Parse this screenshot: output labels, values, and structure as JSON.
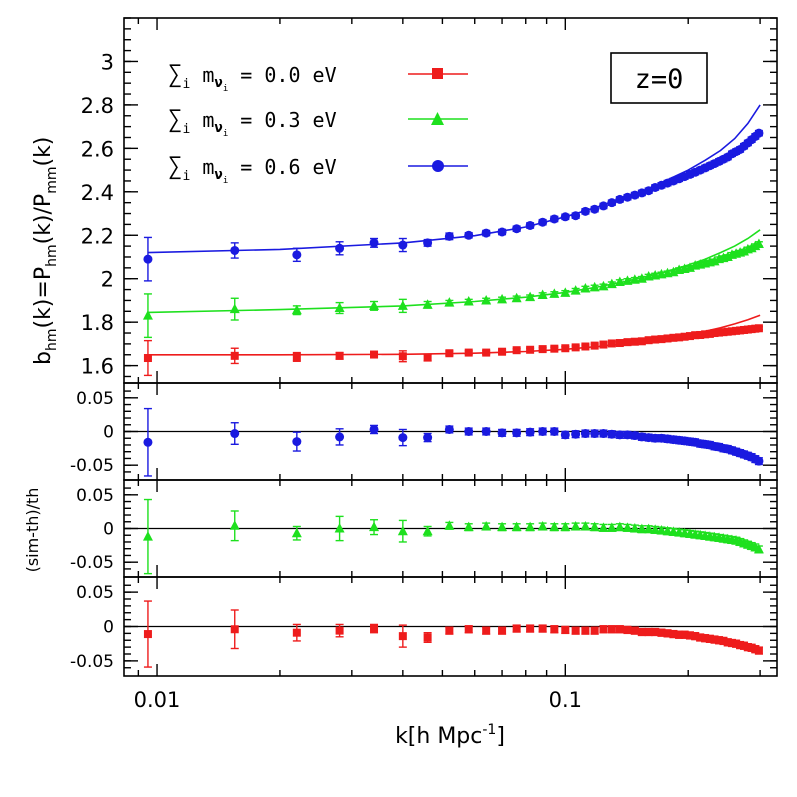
{
  "chart_data": {
    "type": "scatter",
    "x_axis": {
      "label_main": "k[h Mpc",
      "label_sup": "-1",
      "label_end": "]",
      "scale": "log",
      "range": [
        0.0083,
        0.33
      ],
      "tick_labels": [
        {
          "value": 0.01,
          "text": "0.01"
        },
        {
          "value": 0.1,
          "text": "0.1"
        }
      ]
    },
    "top_panel": {
      "ylabel": {
        "b": "b",
        "b_sub": "hm",
        "mid1": "(k)=P",
        "p1_sub": "hm",
        "mid2": "(k)/P",
        "p2_sub": "mm",
        "end": "(k)"
      },
      "ylim": [
        1.52,
        3.2
      ],
      "tick_labels": [
        {
          "value": 1.6,
          "text": "1.6"
        },
        {
          "value": 1.8,
          "text": "1.8"
        },
        {
          "value": 2.0,
          "text": "2"
        },
        {
          "value": 2.2,
          "text": "2.2"
        },
        {
          "value": 2.4,
          "text": "2.4"
        },
        {
          "value": 2.6,
          "text": "2.6"
        },
        {
          "value": 2.8,
          "text": "2.8"
        },
        {
          "value": 3.0,
          "text": "3"
        }
      ],
      "annotation": "z=0",
      "legend_placement": "top-left",
      "legend": [
        {
          "sum": "∑",
          "i_sub": "i",
          "m": " m",
          "nu": "ν",
          "nu_sub": "i",
          "value": " = 0.0 eV",
          "color": "#ee1c1c",
          "marker": "square"
        },
        {
          "sum": "∑",
          "i_sub": "i",
          "m": " m",
          "nu": "ν",
          "nu_sub": "i",
          "value": " = 0.3 eV",
          "color": "#1ee01e",
          "marker": "triangle"
        },
        {
          "sum": "∑",
          "i_sub": "i",
          "m": " m",
          "nu": "ν",
          "nu_sub": "i",
          "value": " = 0.6 eV",
          "color": "#1a1ae0",
          "marker": "circle"
        }
      ]
    },
    "residual_panels": {
      "ylabel": "(sim-th)/th",
      "ylim": [
        -0.072,
        0.072
      ],
      "tick_labels": [
        {
          "value": 0.05,
          "text": "0.05"
        },
        {
          "value": 0,
          "text": "0"
        },
        {
          "value": -0.05,
          "text": "-0.05"
        }
      ],
      "order": [
        "0.6 eV",
        "0.3 eV",
        "0.0 eV"
      ]
    },
    "series": [
      {
        "color": "#ee1c1c",
        "marker": "square",
        "k": [
          0.0095,
          0.0155,
          0.022,
          0.028,
          0.034,
          0.04,
          0.046,
          0.052,
          0.058,
          0.064,
          0.07,
          0.076,
          0.082,
          0.088,
          0.094,
          0.1,
          0.106,
          0.112,
          0.118,
          0.124,
          0.13,
          0.136,
          0.142,
          0.148,
          0.154,
          0.16,
          0.166,
          0.172,
          0.178,
          0.184,
          0.19,
          0.196,
          0.202,
          0.208,
          0.214,
          0.22,
          0.226,
          0.232,
          0.238,
          0.244,
          0.25,
          0.256,
          0.262,
          0.268,
          0.274,
          0.28,
          0.286,
          0.292,
          0.298
        ],
        "bias": [
          1.635,
          1.645,
          1.64,
          1.645,
          1.651,
          1.643,
          1.637,
          1.657,
          1.66,
          1.66,
          1.664,
          1.671,
          1.673,
          1.676,
          1.678,
          1.68,
          1.684,
          1.688,
          1.692,
          1.697,
          1.702,
          1.704,
          1.708,
          1.71,
          1.712,
          1.717,
          1.72,
          1.722,
          1.725,
          1.728,
          1.73,
          1.733,
          1.736,
          1.74,
          1.741,
          1.744,
          1.746,
          1.75,
          1.752,
          1.754,
          1.756,
          1.758,
          1.76,
          1.762,
          1.764,
          1.766,
          1.768,
          1.77,
          1.772
        ],
        "bias_err": [
          0.08,
          0.035,
          0.02,
          0.015,
          0.01,
          0.025,
          0.015,
          0.01,
          0.008,
          0.008,
          0.008,
          0.007,
          0.007,
          0.007,
          0.007,
          0.007,
          0.007,
          0.007,
          0.007,
          0.007,
          0.007,
          0.007,
          0.007,
          0.007,
          0.007,
          0.007,
          0.007,
          0.007,
          0.007,
          0.007,
          0.007,
          0.007,
          0.007,
          0.007,
          0.007,
          0.007,
          0.007,
          0.007,
          0.007,
          0.007,
          0.007,
          0.007,
          0.007,
          0.007,
          0.007,
          0.007,
          0.007,
          0.007,
          0.007
        ],
        "theory_k": [
          0.0095,
          0.02,
          0.04,
          0.06,
          0.08,
          0.1,
          0.12,
          0.14,
          0.16,
          0.18,
          0.2,
          0.22,
          0.24,
          0.26,
          0.28,
          0.3
        ],
        "theory": [
          1.65,
          1.65,
          1.652,
          1.657,
          1.665,
          1.675,
          1.688,
          1.701,
          1.714,
          1.728,
          1.742,
          1.758,
          1.774,
          1.792,
          1.811,
          1.832
        ],
        "resid": [
          -0.011,
          -0.004,
          -0.009,
          -0.006,
          -0.003,
          -0.014,
          -0.016,
          -0.006,
          -0.004,
          -0.006,
          -0.006,
          -0.003,
          -0.003,
          -0.003,
          -0.004,
          -0.005,
          -0.006,
          -0.006,
          -0.006,
          -0.004,
          -0.004,
          -0.004,
          -0.005,
          -0.006,
          -0.008,
          -0.008,
          -0.008,
          -0.009,
          -0.01,
          -0.011,
          -0.012,
          -0.012,
          -0.013,
          -0.014,
          -0.016,
          -0.017,
          -0.018,
          -0.019,
          -0.02,
          -0.021,
          -0.023,
          -0.024,
          -0.025,
          -0.027,
          -0.028,
          -0.03,
          -0.031,
          -0.033,
          -0.035
        ],
        "resid_err": [
          0.048,
          0.028,
          0.012,
          0.009,
          0.006,
          0.016,
          0.007,
          0.005,
          0.005,
          0.005,
          0.005,
          0.005,
          0.005,
          0.005,
          0.005,
          0.005,
          0.005,
          0.005,
          0.005,
          0.005,
          0.005,
          0.005,
          0.005,
          0.005,
          0.005,
          0.005,
          0.005,
          0.005,
          0.005,
          0.005,
          0.005,
          0.005,
          0.005,
          0.005,
          0.005,
          0.005,
          0.005,
          0.005,
          0.005,
          0.005,
          0.005,
          0.005,
          0.005,
          0.005,
          0.005,
          0.005,
          0.005,
          0.005,
          0.005
        ]
      },
      {
        "color": "#1ee01e",
        "marker": "triangle",
        "k": [
          0.0095,
          0.0155,
          0.022,
          0.028,
          0.034,
          0.04,
          0.046,
          0.052,
          0.058,
          0.064,
          0.07,
          0.076,
          0.082,
          0.088,
          0.094,
          0.1,
          0.106,
          0.112,
          0.118,
          0.124,
          0.13,
          0.136,
          0.142,
          0.148,
          0.154,
          0.16,
          0.166,
          0.172,
          0.178,
          0.184,
          0.19,
          0.196,
          0.202,
          0.208,
          0.214,
          0.22,
          0.226,
          0.232,
          0.238,
          0.244,
          0.25,
          0.256,
          0.262,
          0.268,
          0.274,
          0.28,
          0.286,
          0.292,
          0.298
        ],
        "bias": [
          1.83,
          1.86,
          1.855,
          1.865,
          1.875,
          1.875,
          1.88,
          1.89,
          1.895,
          1.9,
          1.905,
          1.91,
          1.915,
          1.925,
          1.93,
          1.935,
          1.945,
          1.955,
          1.96,
          1.965,
          1.975,
          1.985,
          1.99,
          1.995,
          2.0,
          2.01,
          2.015,
          2.02,
          2.025,
          2.03,
          2.04,
          2.045,
          2.05,
          2.06,
          2.065,
          2.07,
          2.075,
          2.08,
          2.09,
          2.095,
          2.1,
          2.11,
          2.115,
          2.12,
          2.125,
          2.135,
          2.14,
          2.15,
          2.16
        ],
        "bias_err": [
          0.1,
          0.05,
          0.02,
          0.025,
          0.02,
          0.03,
          0.015,
          0.01,
          0.01,
          0.01,
          0.01,
          0.01,
          0.01,
          0.01,
          0.01,
          0.01,
          0.01,
          0.01,
          0.01,
          0.01,
          0.01,
          0.01,
          0.01,
          0.01,
          0.01,
          0.01,
          0.01,
          0.01,
          0.01,
          0.01,
          0.01,
          0.01,
          0.01,
          0.01,
          0.01,
          0.01,
          0.01,
          0.01,
          0.01,
          0.01,
          0.01,
          0.01,
          0.01,
          0.01,
          0.01,
          0.01,
          0.01,
          0.01,
          0.01
        ],
        "theory_k": [
          0.0095,
          0.02,
          0.04,
          0.06,
          0.08,
          0.1,
          0.12,
          0.14,
          0.16,
          0.18,
          0.2,
          0.22,
          0.24,
          0.26,
          0.28,
          0.3
        ],
        "theory": [
          1.845,
          1.858,
          1.875,
          1.895,
          1.915,
          1.937,
          1.962,
          1.987,
          2.012,
          2.037,
          2.063,
          2.09,
          2.12,
          2.15,
          2.185,
          2.225
        ],
        "resid": [
          -0.012,
          0.004,
          -0.007,
          0.0,
          0.002,
          -0.004,
          -0.004,
          0.004,
          0.002,
          0.003,
          0.002,
          0.002,
          0.002,
          0.003,
          0.002,
          0.002,
          0.003,
          0.003,
          0.002,
          0.001,
          0.001,
          0.002,
          0.001,
          0.0,
          -0.001,
          -0.001,
          -0.002,
          -0.003,
          -0.004,
          -0.005,
          -0.006,
          -0.007,
          -0.008,
          -0.009,
          -0.01,
          -0.011,
          -0.012,
          -0.013,
          -0.014,
          -0.015,
          -0.016,
          -0.017,
          -0.018,
          -0.02,
          -0.022,
          -0.024,
          -0.026,
          -0.028,
          -0.031
        ],
        "resid_err": [
          0.055,
          0.022,
          0.01,
          0.018,
          0.011,
          0.016,
          0.007,
          0.005,
          0.005,
          0.005,
          0.005,
          0.005,
          0.005,
          0.005,
          0.005,
          0.005,
          0.005,
          0.005,
          0.005,
          0.005,
          0.005,
          0.005,
          0.005,
          0.005,
          0.005,
          0.005,
          0.005,
          0.005,
          0.005,
          0.005,
          0.005,
          0.005,
          0.005,
          0.005,
          0.005,
          0.005,
          0.005,
          0.005,
          0.005,
          0.005,
          0.005,
          0.005,
          0.005,
          0.005,
          0.005,
          0.005,
          0.005,
          0.005,
          0.005
        ]
      },
      {
        "color": "#1a1ae0",
        "marker": "circle",
        "k": [
          0.0095,
          0.0155,
          0.022,
          0.028,
          0.034,
          0.04,
          0.046,
          0.052,
          0.058,
          0.064,
          0.07,
          0.076,
          0.082,
          0.088,
          0.094,
          0.1,
          0.106,
          0.112,
          0.118,
          0.124,
          0.13,
          0.136,
          0.142,
          0.148,
          0.154,
          0.16,
          0.166,
          0.172,
          0.178,
          0.184,
          0.19,
          0.196,
          0.202,
          0.208,
          0.214,
          0.22,
          0.226,
          0.232,
          0.238,
          0.244,
          0.25,
          0.256,
          0.262,
          0.268,
          0.274,
          0.28,
          0.286,
          0.292,
          0.298
        ],
        "bias": [
          2.09,
          2.13,
          2.11,
          2.14,
          2.165,
          2.155,
          2.165,
          2.195,
          2.2,
          2.21,
          2.215,
          2.23,
          2.245,
          2.26,
          2.275,
          2.285,
          2.29,
          2.31,
          2.32,
          2.335,
          2.35,
          2.365,
          2.375,
          2.385,
          2.395,
          2.405,
          2.42,
          2.43,
          2.44,
          2.45,
          2.46,
          2.47,
          2.48,
          2.49,
          2.5,
          2.51,
          2.52,
          2.53,
          2.54,
          2.55,
          2.56,
          2.575,
          2.585,
          2.595,
          2.61,
          2.625,
          2.64,
          2.655,
          2.67
        ],
        "bias_err": [
          0.1,
          0.035,
          0.03,
          0.03,
          0.02,
          0.03,
          0.015,
          0.015,
          0.012,
          0.012,
          0.012,
          0.012,
          0.012,
          0.012,
          0.012,
          0.012,
          0.012,
          0.012,
          0.012,
          0.012,
          0.012,
          0.012,
          0.012,
          0.012,
          0.012,
          0.012,
          0.012,
          0.012,
          0.012,
          0.012,
          0.012,
          0.012,
          0.012,
          0.012,
          0.012,
          0.012,
          0.012,
          0.012,
          0.012,
          0.012,
          0.012,
          0.012,
          0.012,
          0.012,
          0.012,
          0.012,
          0.012,
          0.012,
          0.012
        ],
        "theory_k": [
          0.0095,
          0.02,
          0.04,
          0.06,
          0.08,
          0.1,
          0.12,
          0.14,
          0.16,
          0.18,
          0.2,
          0.22,
          0.24,
          0.26,
          0.28,
          0.3
        ],
        "theory": [
          2.12,
          2.135,
          2.165,
          2.198,
          2.238,
          2.285,
          2.33,
          2.375,
          2.415,
          2.46,
          2.5,
          2.545,
          2.59,
          2.645,
          2.715,
          2.8
        ],
        "resid": [
          -0.016,
          -0.003,
          -0.015,
          -0.008,
          0.003,
          -0.009,
          -0.009,
          0.003,
          0.0,
          0.0,
          -0.002,
          -0.002,
          -0.001,
          0.0,
          0.0,
          -0.005,
          -0.004,
          -0.003,
          -0.003,
          -0.003,
          -0.004,
          -0.005,
          -0.005,
          -0.006,
          -0.008,
          -0.009,
          -0.01,
          -0.01,
          -0.011,
          -0.012,
          -0.013,
          -0.014,
          -0.015,
          -0.016,
          -0.018,
          -0.019,
          -0.02,
          -0.022,
          -0.023,
          -0.025,
          -0.026,
          -0.028,
          -0.03,
          -0.032,
          -0.034,
          -0.036,
          -0.038,
          -0.041,
          -0.044
        ],
        "resid_err": [
          0.05,
          0.016,
          0.014,
          0.012,
          0.006,
          0.012,
          0.006,
          0.005,
          0.005,
          0.005,
          0.005,
          0.005,
          0.005,
          0.005,
          0.005,
          0.005,
          0.005,
          0.005,
          0.005,
          0.005,
          0.005,
          0.005,
          0.005,
          0.005,
          0.005,
          0.005,
          0.005,
          0.005,
          0.005,
          0.005,
          0.005,
          0.005,
          0.005,
          0.005,
          0.005,
          0.005,
          0.005,
          0.005,
          0.005,
          0.005,
          0.005,
          0.005,
          0.005,
          0.005,
          0.005,
          0.005,
          0.005,
          0.005,
          0.005
        ]
      }
    ]
  }
}
